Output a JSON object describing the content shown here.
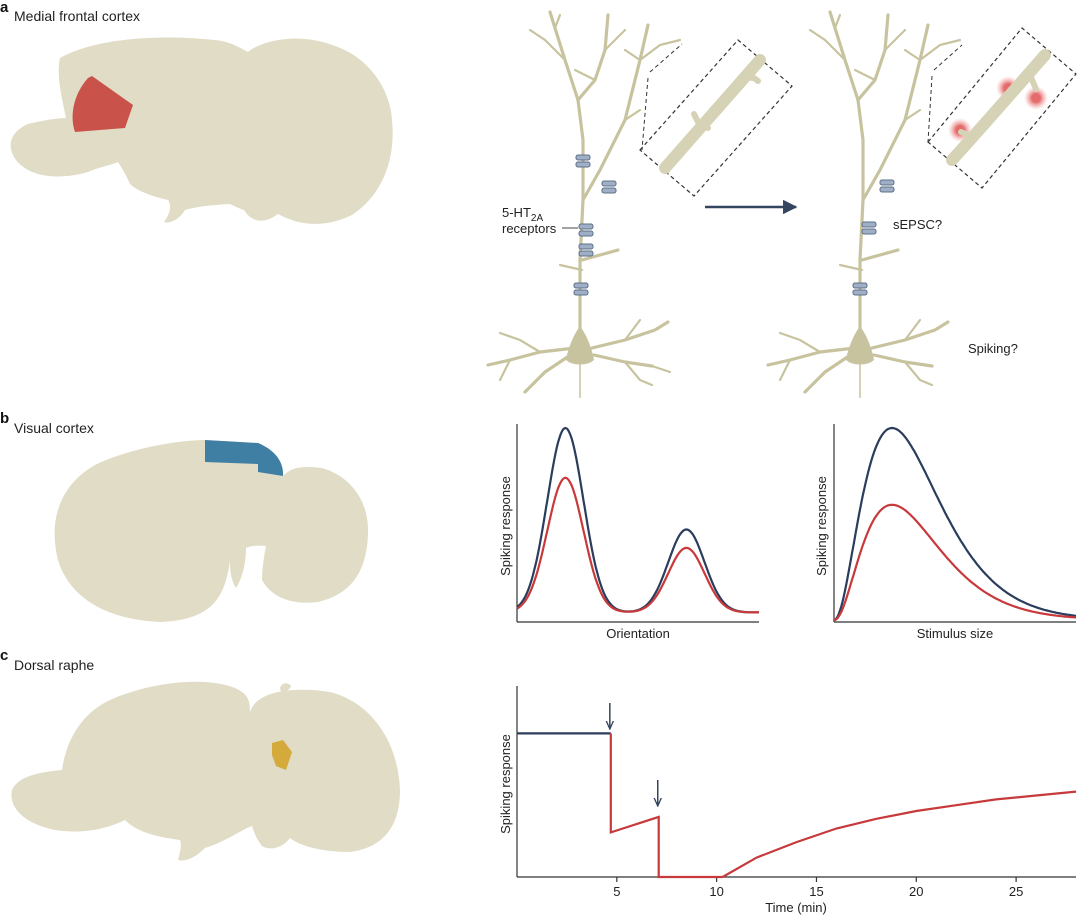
{
  "panels": {
    "a": {
      "letter": "a",
      "region": "Medial frontal cortex",
      "region_color": "#c9524a"
    },
    "b": {
      "letter": "b",
      "region": "Visual cortex",
      "region_color": "#3f7fa3"
    },
    "c": {
      "letter": "c",
      "region": "Dorsal raphe",
      "region_color": "#d4ab3b"
    }
  },
  "neuron": {
    "receptor_label_main": "5-HT",
    "receptor_label_sub": "2A",
    "receptor_label_line2": "receptors",
    "sepsc_label": "sEPSC?",
    "spiking_label": "Spiking?"
  },
  "colors": {
    "baseline": "#2b3d5c",
    "drug": "#c7393b",
    "neuron": "#c8c39f",
    "brain": "#e0dcc6"
  },
  "chart_data": [
    {
      "type": "line",
      "xlabel": "Orientation",
      "ylabel": "Spiking response",
      "x_ticks_shown": false,
      "series": [
        {
          "color": "#2b3d5c",
          "peaks": [
            {
              "x": 0.2,
              "amplitude": 1.0
            },
            {
              "x": 0.7,
              "amplitude": 0.45
            }
          ]
        },
        {
          "color": "#c7393b",
          "peaks": [
            {
              "x": 0.2,
              "amplitude": 0.73
            },
            {
              "x": 0.7,
              "amplitude": 0.35
            }
          ]
        }
      ]
    },
    {
      "type": "line",
      "xlabel": "Stimulus size",
      "ylabel": "Spiking response",
      "x_ticks_shown": false,
      "series": [
        {
          "color": "#2b3d5c",
          "peak_x": 0.24,
          "peak_y": 1.0
        },
        {
          "color": "#c7393b",
          "peak_x": 0.24,
          "peak_y": 0.6
        }
      ]
    },
    {
      "type": "line",
      "xlabel": "Time (min)",
      "ylabel": "Spiking response",
      "xlim": [
        0,
        28
      ],
      "ylim": [
        0,
        1
      ],
      "xticks": [
        "5",
        "10",
        "15",
        "20",
        "25"
      ],
      "arrows_at": [
        4.7,
        7.1
      ],
      "series": [
        {
          "color": "#2b3d5c",
          "x": [
            0,
            4.7
          ],
          "y": [
            0.74,
            0.74
          ]
        },
        {
          "color": "#c7393b",
          "x": [
            4.7,
            4.7,
            7.1,
            7.1,
            10.3,
            12,
            14,
            16,
            18,
            20,
            22,
            24,
            26,
            28
          ],
          "y": [
            0.74,
            0.23,
            0.31,
            0.0,
            0.0,
            0.1,
            0.18,
            0.25,
            0.3,
            0.34,
            0.37,
            0.4,
            0.42,
            0.44
          ]
        }
      ]
    }
  ]
}
